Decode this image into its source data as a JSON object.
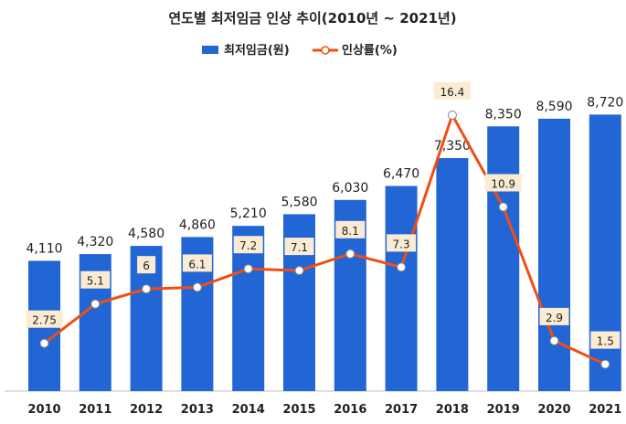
{
  "chart_data": {
    "type": "bar+line",
    "title": "연도별 최저임금 인상 추이(2010년 ~ 2021년)",
    "categories": [
      "2010",
      "2011",
      "2012",
      "2013",
      "2014",
      "2015",
      "2016",
      "2017",
      "2018",
      "2019",
      "2020",
      "2021"
    ],
    "series": [
      {
        "name": "최저임금(원)",
        "type": "bar",
        "values": [
          4110,
          4320,
          4580,
          4860,
          5210,
          5580,
          6030,
          6470,
          7350,
          8350,
          8590,
          8720
        ],
        "labels": [
          "4,110",
          "4,320",
          "4,580",
          "4,860",
          "5,210",
          "5,580",
          "6,030",
          "6,470",
          "7,350",
          "8,350",
          "8,590",
          "8,720"
        ],
        "color": "#2266D6"
      },
      {
        "name": "인상률(%)",
        "type": "line",
        "values": [
          2.75,
          5.1,
          6,
          6.1,
          7.2,
          7.1,
          8.1,
          7.3,
          16.4,
          10.9,
          2.9,
          1.5
        ],
        "labels": [
          "2.75",
          "5.1",
          "6",
          "6.1",
          "7.2",
          "7.1",
          "8.1",
          "7.3",
          "16.4",
          "10.9",
          "2.9",
          "1.5"
        ],
        "color": "#F04E12"
      }
    ],
    "y_left_range": [
      0,
      9000
    ],
    "y_right_range": [
      0,
      18
    ],
    "legend_position": "top-center",
    "grid": false
  }
}
